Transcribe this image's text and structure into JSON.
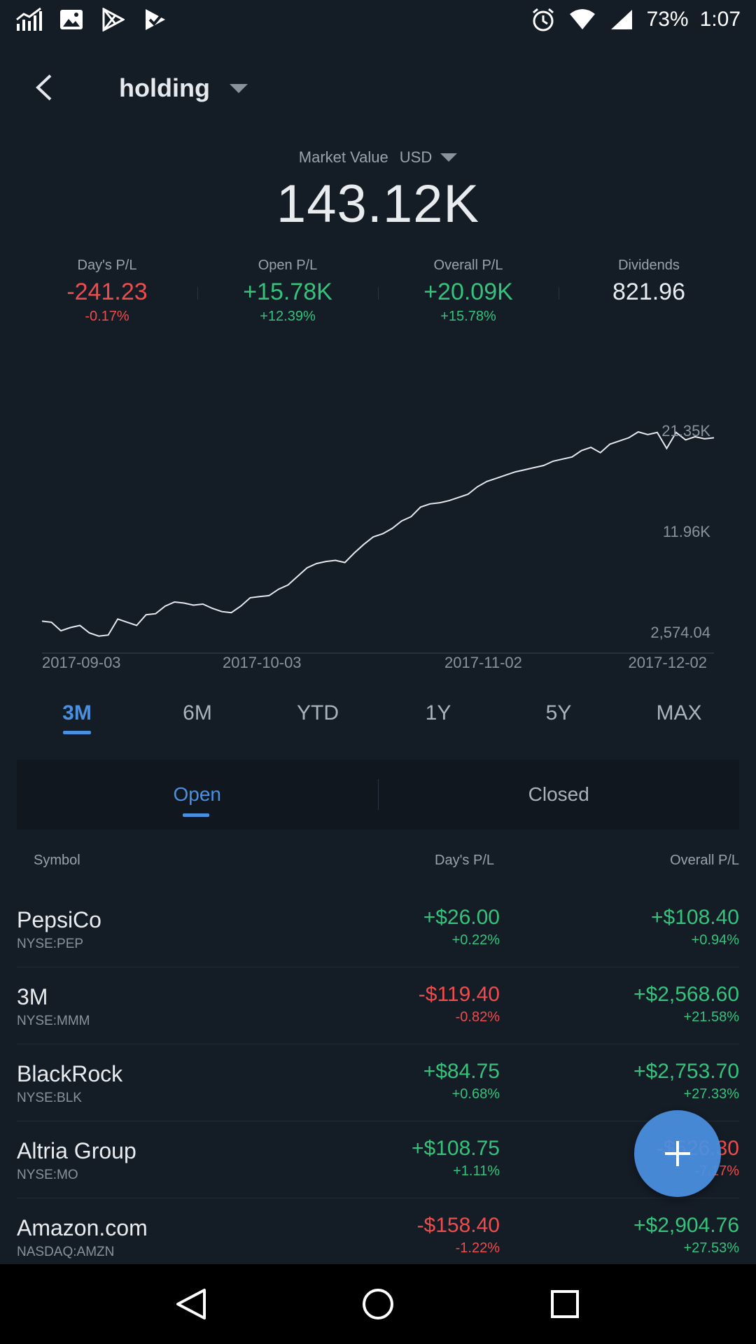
{
  "status": {
    "battery": "73%",
    "time": "1:07"
  },
  "header": {
    "title": "holding"
  },
  "market_value": {
    "label": "Market Value",
    "currency": "USD",
    "value": "143.12K"
  },
  "stats": [
    {
      "label": "Day's P/L",
      "value": "-241.23",
      "pct": "-0.17%",
      "tone": "red"
    },
    {
      "label": "Open P/L",
      "value": "+15.78K",
      "pct": "+12.39%",
      "tone": "green"
    },
    {
      "label": "Overall P/L",
      "value": "+20.09K",
      "pct": "+15.78%",
      "tone": "green"
    },
    {
      "label": "Dividends",
      "value": "821.96",
      "pct": "",
      "tone": "white"
    }
  ],
  "chart_data": {
    "type": "line",
    "y_ticks": [
      "21.35K",
      "11.96K",
      "2,574.04"
    ],
    "x_ticks": [
      "2017-09-03",
      "2017-10-03",
      "2017-11-02",
      "2017-12-02"
    ],
    "series": [
      {
        "values": [
          3600,
          3500,
          2700,
          3000,
          3200,
          2500,
          2200,
          2300,
          3800,
          3500,
          3200,
          4200,
          4300,
          5000,
          5400,
          5300,
          5100,
          5200,
          4800,
          4500,
          4400,
          5000,
          5800,
          5900,
          6000,
          6600,
          7000,
          7800,
          8600,
          9000,
          9200,
          9300,
          9100,
          10000,
          10800,
          11500,
          11800,
          12300,
          13000,
          13400,
          14300,
          14600,
          14700,
          14900,
          15200,
          15500,
          16200,
          16700,
          17000,
          17300,
          17600,
          17800,
          18000,
          18200,
          18600,
          18800,
          19000,
          19600,
          19900,
          19400,
          20200,
          20500,
          20800,
          21350,
          21100,
          21300,
          19800,
          21300,
          20600,
          20900,
          20700,
          20800
        ]
      }
    ],
    "ylim": [
      2574.04,
      21350
    ]
  },
  "ranges": [
    "3M",
    "6M",
    "YTD",
    "1Y",
    "5Y",
    "MAX"
  ],
  "active_range": "3M",
  "tabs": {
    "open": "Open",
    "closed": "Closed"
  },
  "table": {
    "col_symbol": "Symbol",
    "col_day": "Day's P/L",
    "col_overall": "Overall P/L",
    "rows": [
      {
        "name": "PepsiCo",
        "ticker": "NYSE:PEP",
        "day": "+$26.00",
        "day_pct": "+0.22%",
        "day_tone": "green",
        "overall": "+$108.40",
        "overall_pct": "+0.94%",
        "overall_tone": "green"
      },
      {
        "name": "3M",
        "ticker": "NYSE:MMM",
        "day": "-$119.40",
        "day_pct": "-0.82%",
        "day_tone": "red",
        "overall": "+$2,568.60",
        "overall_pct": "+21.58%",
        "overall_tone": "green"
      },
      {
        "name": "BlackRock",
        "ticker": "NYSE:BLK",
        "day": "+$84.75",
        "day_pct": "+0.68%",
        "day_tone": "green",
        "overall": "+$2,753.70",
        "overall_pct": "+27.33%",
        "overall_tone": "green"
      },
      {
        "name": "Altria Group",
        "ticker": "NYSE:MO",
        "day": "+$108.75",
        "day_pct": "+1.11%",
        "day_tone": "green",
        "overall": "-$526.30",
        "overall_pct": "-7.17%",
        "overall_tone": "red"
      },
      {
        "name": "Amazon.com",
        "ticker": "NASDAQ:AMZN",
        "day": "-$158.40",
        "day_pct": "-1.22%",
        "day_tone": "red",
        "overall": "+$2,904.76",
        "overall_pct": "+27.53%",
        "overall_tone": "green"
      }
    ]
  },
  "colors": {
    "background": "#141c26",
    "accent": "#4a90e2",
    "positive": "#35c37c",
    "negative": "#ef4c4c"
  }
}
